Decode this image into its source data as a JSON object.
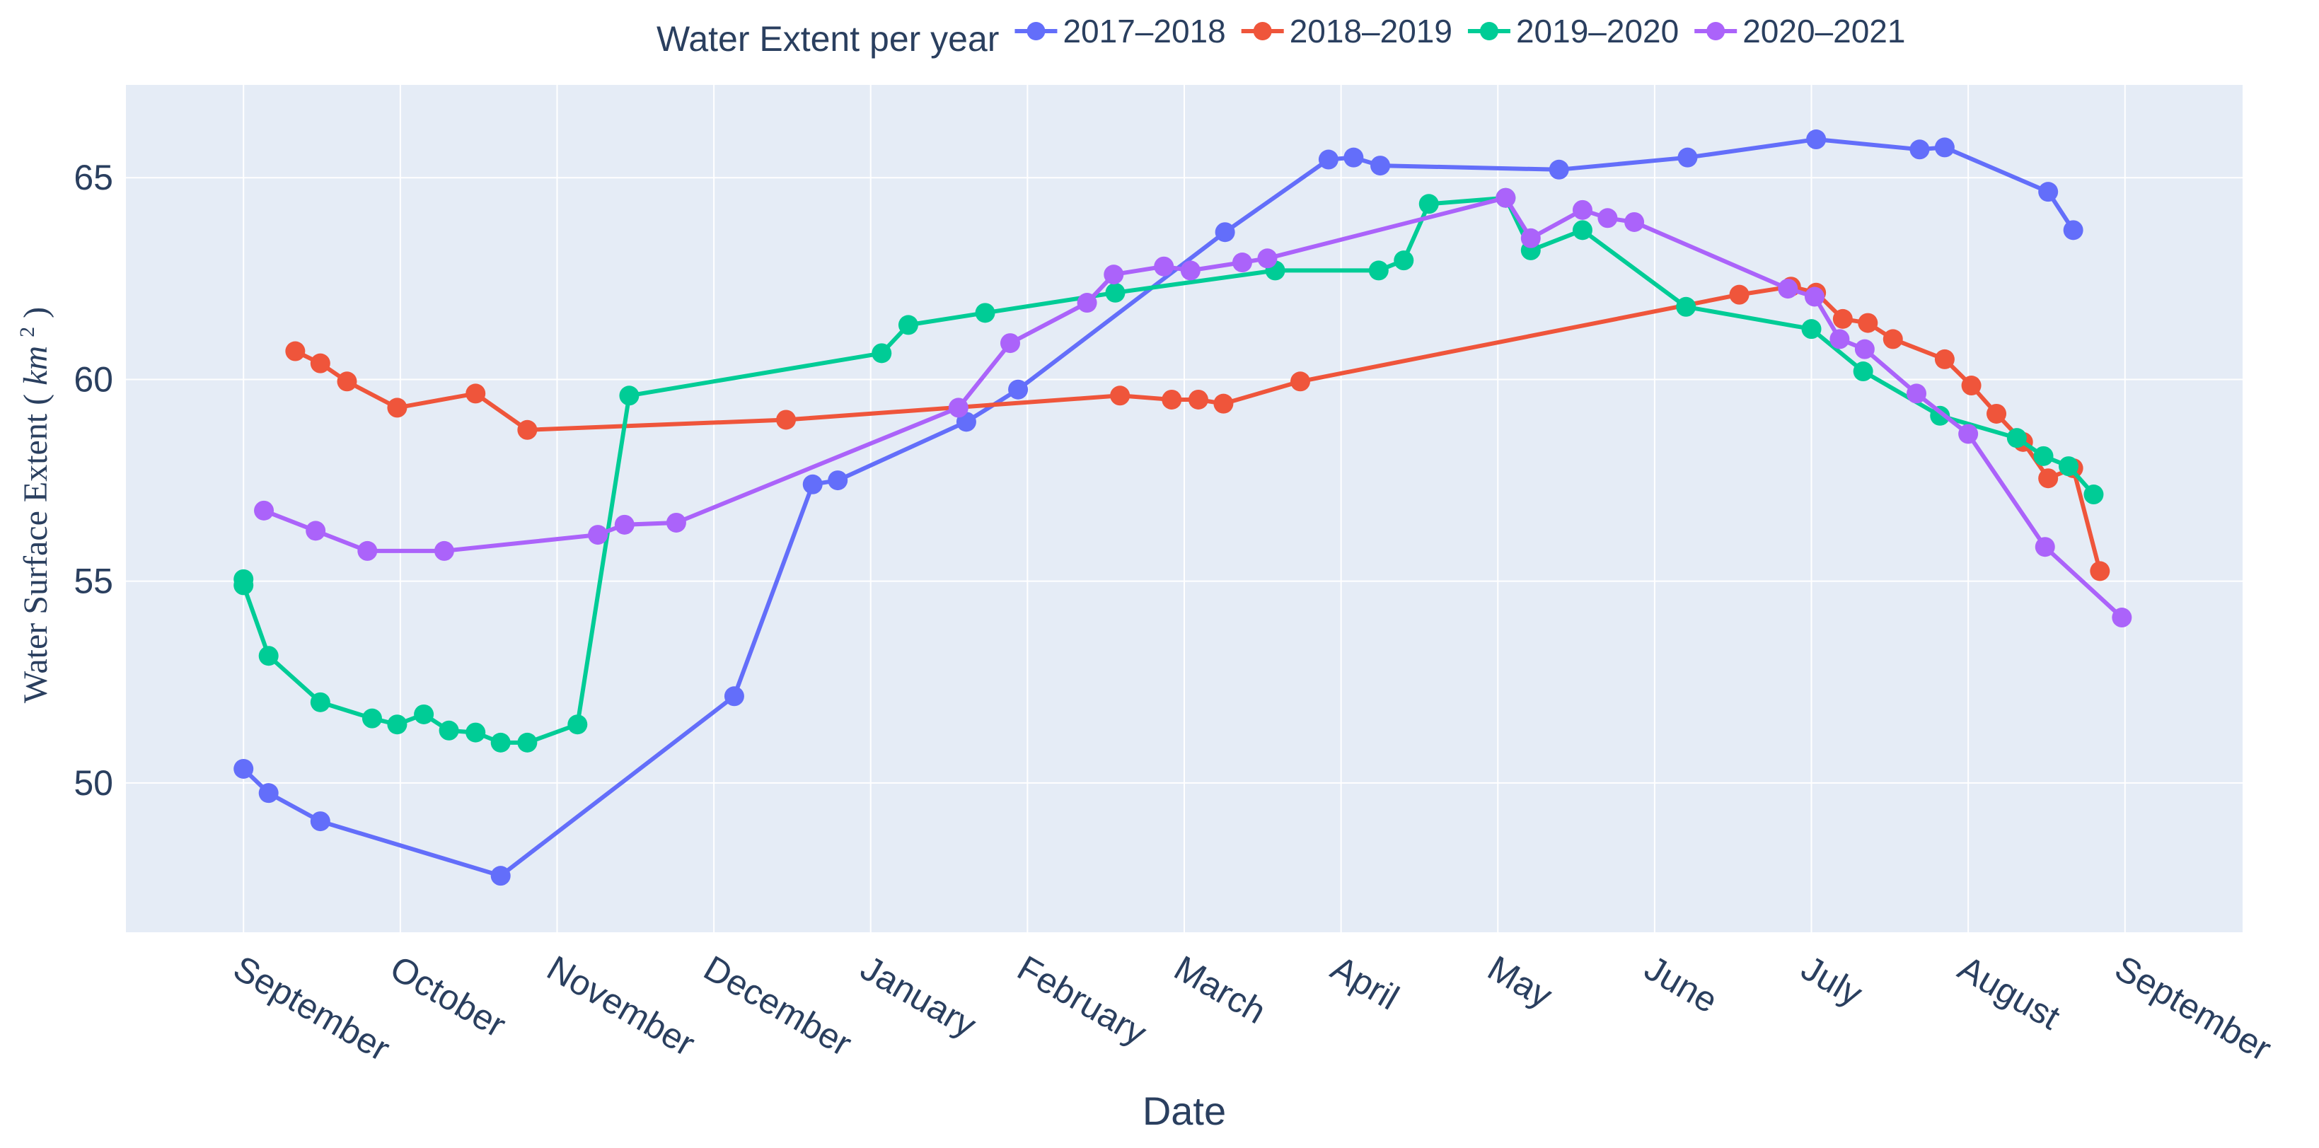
{
  "chart_data": {
    "type": "line",
    "legend_title": "Water Extent per year",
    "legend_position": "top",
    "xlabel": "Date",
    "ylabel": "Water Surface Extent",
    "ylabel_unit": "km",
    "ylabel_unit_exp": "2",
    "x_range": [
      -0.75,
      12.75
    ],
    "ylim": [
      46.3,
      67.3
    ],
    "y_ticks": [
      50,
      55,
      60,
      65
    ],
    "x_ticks": [
      {
        "value": 0,
        "label": "September"
      },
      {
        "value": 1,
        "label": "October"
      },
      {
        "value": 2,
        "label": "November"
      },
      {
        "value": 3,
        "label": "December"
      },
      {
        "value": 4,
        "label": "January"
      },
      {
        "value": 5,
        "label": "February"
      },
      {
        "value": 6,
        "label": "March"
      },
      {
        "value": 7,
        "label": "April"
      },
      {
        "value": 8,
        "label": "May"
      },
      {
        "value": 9,
        "label": "June"
      },
      {
        "value": 10,
        "label": "July"
      },
      {
        "value": 11,
        "label": "August"
      },
      {
        "value": 12,
        "label": "September"
      }
    ],
    "colors": {
      "plot_bg": "#e5ecf6",
      "grid": "#ffffff",
      "text": "#2a3f5f"
    },
    "series": [
      {
        "name": "2017–2018",
        "color": "#636efa",
        "points": [
          [
            0.0,
            50.35
          ],
          [
            0.16,
            49.75
          ],
          [
            0.49,
            49.05
          ],
          [
            1.64,
            47.7
          ],
          [
            3.13,
            52.15
          ],
          [
            3.63,
            57.4
          ],
          [
            3.79,
            57.5
          ],
          [
            4.61,
            58.95
          ],
          [
            4.94,
            59.75
          ],
          [
            6.26,
            63.65
          ],
          [
            6.92,
            65.45
          ],
          [
            7.08,
            65.5
          ],
          [
            7.25,
            65.3
          ],
          [
            8.39,
            65.2
          ],
          [
            9.21,
            65.5
          ],
          [
            10.03,
            65.95
          ],
          [
            10.69,
            65.7
          ],
          [
            10.85,
            65.75
          ],
          [
            11.51,
            64.65
          ],
          [
            11.67,
            63.7
          ]
        ]
      },
      {
        "name": "2018–2019",
        "color": "#ef553b",
        "points": [
          [
            0.33,
            60.7
          ],
          [
            0.49,
            60.4
          ],
          [
            0.66,
            59.95
          ],
          [
            0.98,
            59.3
          ],
          [
            1.48,
            59.65
          ],
          [
            1.81,
            58.75
          ],
          [
            3.46,
            59.0
          ],
          [
            5.59,
            59.6
          ],
          [
            5.92,
            59.5
          ],
          [
            6.09,
            59.5
          ],
          [
            6.25,
            59.4
          ],
          [
            6.74,
            59.95
          ],
          [
            9.54,
            62.1
          ],
          [
            9.87,
            62.3
          ],
          [
            10.03,
            62.15
          ],
          [
            10.2,
            61.5
          ],
          [
            10.36,
            61.4
          ],
          [
            10.52,
            61.0
          ],
          [
            10.85,
            60.5
          ],
          [
            11.02,
            59.85
          ],
          [
            11.18,
            59.15
          ],
          [
            11.35,
            58.45
          ],
          [
            11.51,
            57.55
          ],
          [
            11.67,
            57.8
          ],
          [
            11.84,
            55.25
          ]
        ]
      },
      {
        "name": "2019–2020",
        "color": "#00cc96",
        "points": [
          [
            0.0,
            55.05
          ],
          [
            0.0,
            54.9
          ],
          [
            0.16,
            53.15
          ],
          [
            0.49,
            52.0
          ],
          [
            0.82,
            51.6
          ],
          [
            0.98,
            51.45
          ],
          [
            1.15,
            51.7
          ],
          [
            1.31,
            51.3
          ],
          [
            1.48,
            51.25
          ],
          [
            1.64,
            51.0
          ],
          [
            1.81,
            51.0
          ],
          [
            2.13,
            51.45
          ],
          [
            2.46,
            59.6
          ],
          [
            4.07,
            60.65
          ],
          [
            4.24,
            61.35
          ],
          [
            4.73,
            61.65
          ],
          [
            5.56,
            62.15
          ],
          [
            6.58,
            62.7
          ],
          [
            7.24,
            62.7
          ],
          [
            7.4,
            62.95
          ],
          [
            7.56,
            64.35
          ],
          [
            8.05,
            64.5
          ],
          [
            8.21,
            63.2
          ],
          [
            8.54,
            63.7
          ],
          [
            9.2,
            61.8
          ],
          [
            10.0,
            61.25
          ],
          [
            10.33,
            60.2
          ],
          [
            10.82,
            59.1
          ],
          [
            11.31,
            58.55
          ],
          [
            11.48,
            58.1
          ],
          [
            11.64,
            57.85
          ],
          [
            11.8,
            57.15
          ]
        ]
      },
      {
        "name": "2020–2021",
        "color": "#ab63fa",
        "points": [
          [
            0.13,
            56.75
          ],
          [
            0.46,
            56.25
          ],
          [
            0.79,
            55.75
          ],
          [
            1.28,
            55.75
          ],
          [
            2.26,
            56.15
          ],
          [
            2.43,
            56.4
          ],
          [
            2.76,
            56.45
          ],
          [
            4.56,
            59.3
          ],
          [
            4.89,
            60.9
          ],
          [
            5.38,
            61.9
          ],
          [
            5.55,
            62.6
          ],
          [
            5.87,
            62.8
          ],
          [
            6.04,
            62.7
          ],
          [
            6.37,
            62.9
          ],
          [
            6.53,
            63.0
          ],
          [
            8.05,
            64.5
          ],
          [
            8.21,
            63.5
          ],
          [
            8.54,
            64.2
          ],
          [
            8.7,
            64.0
          ],
          [
            8.87,
            63.9
          ],
          [
            9.85,
            62.25
          ],
          [
            10.02,
            62.05
          ],
          [
            10.18,
            61.0
          ],
          [
            10.34,
            60.75
          ],
          [
            10.67,
            59.65
          ],
          [
            11.0,
            58.65
          ],
          [
            11.49,
            55.85
          ],
          [
            11.98,
            54.1
          ]
        ]
      }
    ]
  }
}
